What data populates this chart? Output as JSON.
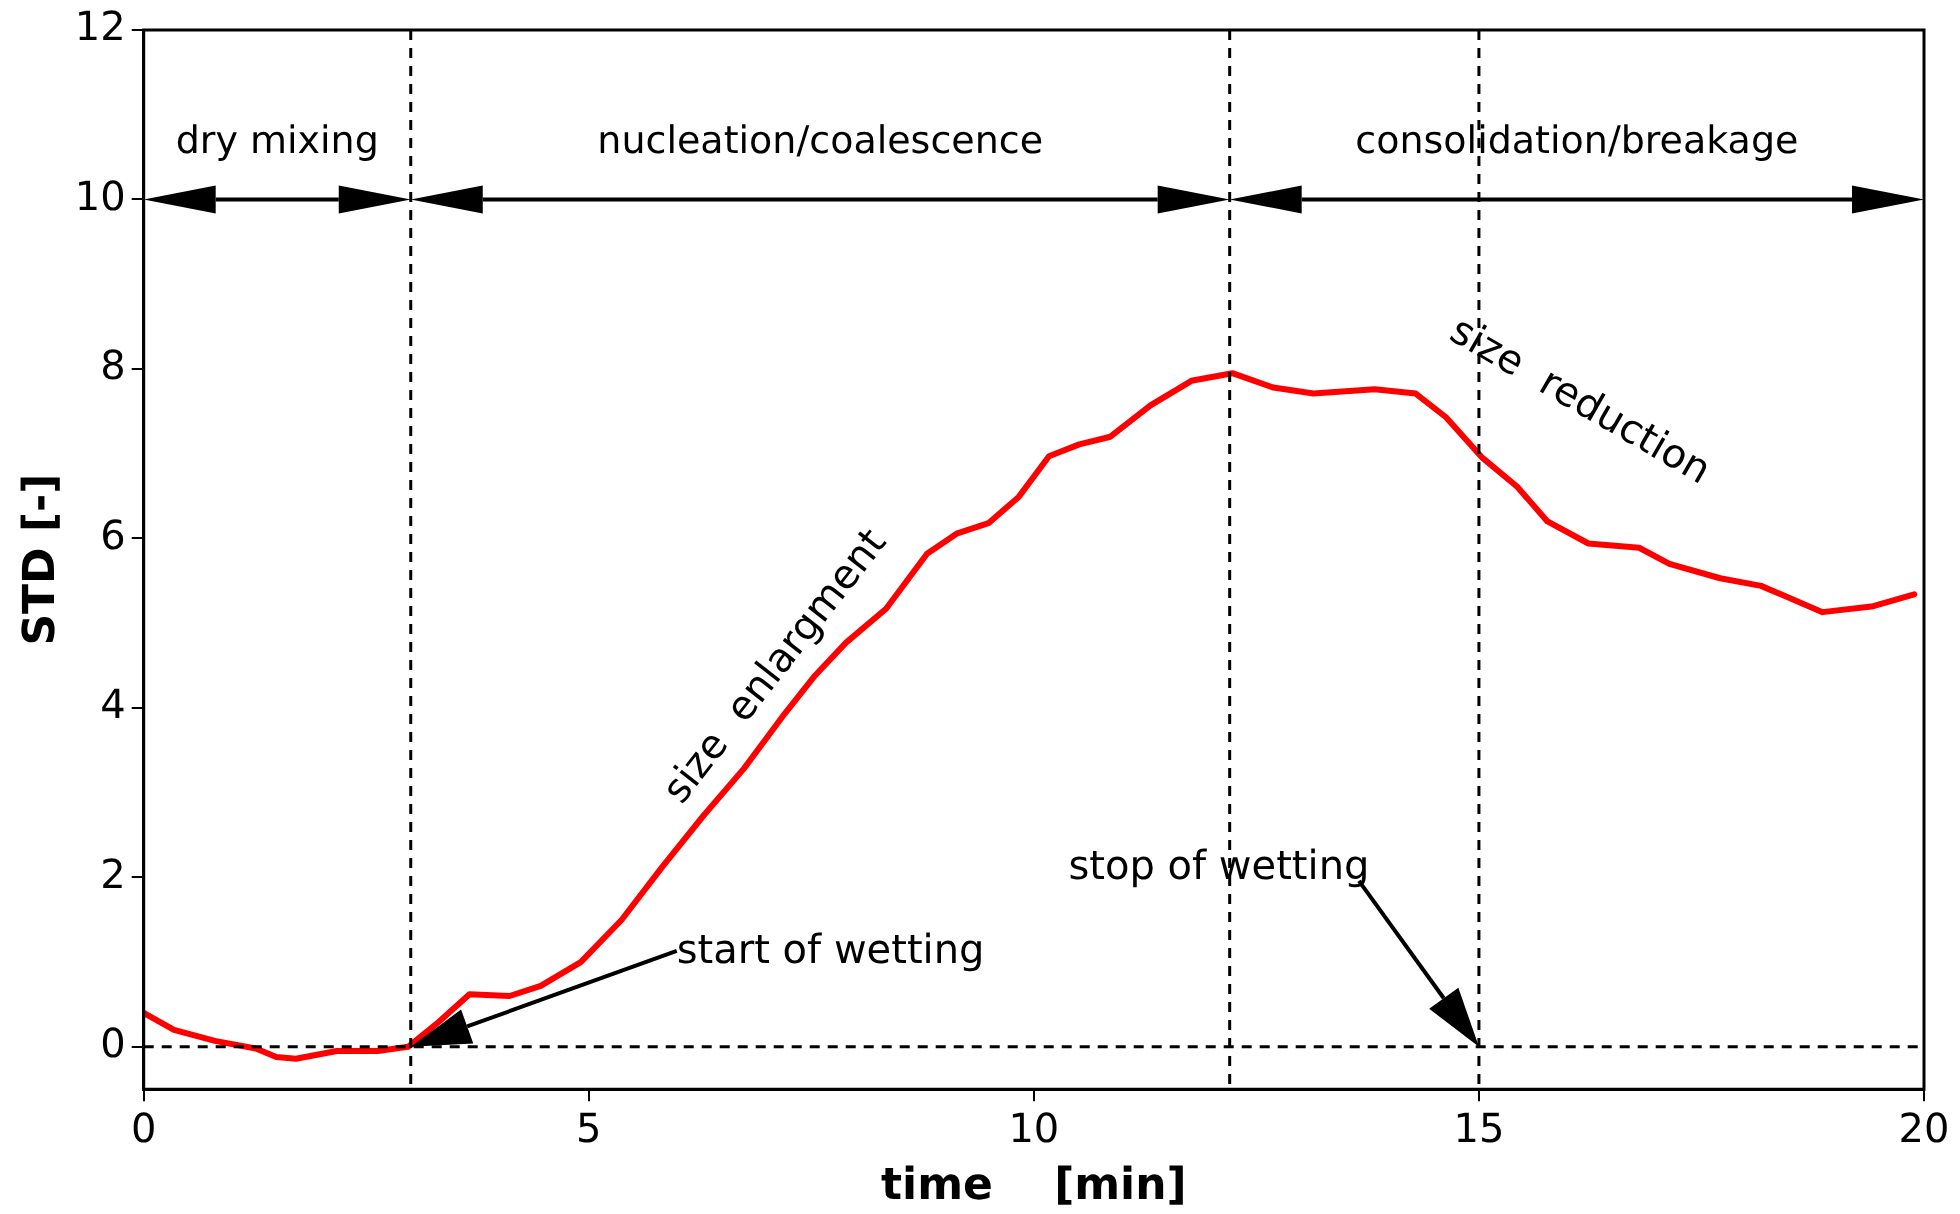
{
  "chart_data": {
    "type": "line",
    "xlabel": "time    [min]",
    "ylabel": "STD [-]",
    "xlim": [
      0,
      20
    ],
    "xticks": [
      0,
      5,
      10,
      15,
      20
    ],
    "ylim": [
      -0.5,
      12
    ],
    "yticks": [
      0,
      2,
      4,
      6,
      8,
      10,
      12
    ],
    "grid": false,
    "legend": false,
    "marker": "none",
    "line_style": "solid",
    "series": [
      {
        "color": "#ff0000",
        "x": [
          0,
          0.34,
          0.8,
          1.26,
          1.49,
          1.71,
          2.17,
          2.63,
          2.97,
          3.31,
          3.66,
          4.11,
          4.46,
          4.91,
          5.37,
          5.83,
          6.29,
          6.74,
          7.2,
          7.54,
          7.89,
          8.34,
          8.8,
          9.14,
          9.49,
          9.83,
          10.17,
          10.51,
          10.86,
          11.31,
          11.77,
          12.23,
          12.69,
          13.14,
          13.83,
          14.29,
          14.63,
          15.04,
          15.43,
          15.77,
          16.23,
          16.8,
          17.14,
          17.71,
          18.17,
          18.86,
          19.43,
          19.89
        ],
        "values": [
          0.4,
          0.2,
          0.07,
          -0.02,
          -0.12,
          -0.14,
          -0.05,
          -0.05,
          0,
          0.29,
          0.62,
          0.6,
          0.72,
          1.0,
          1.5,
          2.13,
          2.73,
          3.28,
          3.93,
          4.38,
          4.77,
          5.17,
          5.82,
          6.06,
          6.18,
          6.49,
          6.97,
          7.11,
          7.2,
          7.57,
          7.86,
          7.95,
          7.78,
          7.71,
          7.76,
          7.71,
          7.43,
          6.95,
          6.61,
          6.2,
          5.94,
          5.89,
          5.7,
          5.53,
          5.44,
          5.13,
          5.2,
          5.34
        ]
      }
    ],
    "ref_lines": [
      {
        "axis": "y",
        "value": 0,
        "color": "#000000",
        "line_style": "dashed"
      },
      {
        "axis": "x",
        "value": 3,
        "color": "#000000",
        "line_style": "dashed"
      },
      {
        "axis": "x",
        "value": 12.2,
        "color": "#000000",
        "line_style": "dashed"
      },
      {
        "axis": "x",
        "value": 15,
        "color": "#000000",
        "line_style": "dashed"
      }
    ],
    "annotations": [
      "dry mixing",
      "nucleation/coalescence",
      "consolidation/breakage",
      "start of wetting",
      "stop of wetting",
      {
        "text": "size  enlargment",
        "x": 7.2,
        "y": 3.93
      },
      {
        "text": "size  reduction",
        "x": 15.8,
        "y": 6.2
      }
    ]
  }
}
